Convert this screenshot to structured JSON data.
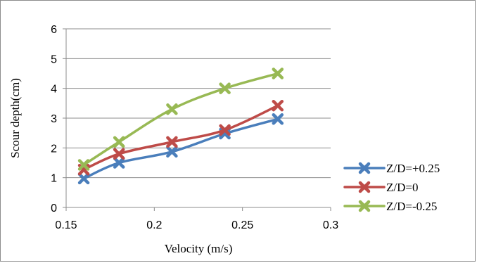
{
  "chart_data": {
    "type": "line",
    "xlabel": "Velocity (m/s)",
    "ylabel": "Scour depth(cm)",
    "xlim": [
      0.15,
      0.3
    ],
    "ylim": [
      0,
      6
    ],
    "xticks": [
      0.15,
      0.2,
      0.25,
      0.3
    ],
    "xtick_labels": [
      "0.15",
      "0.2",
      "0.25",
      "0.3"
    ],
    "yticks": [
      0,
      1,
      2,
      3,
      4,
      5,
      6
    ],
    "ytick_labels": [
      "0",
      "1",
      "2",
      "3",
      "4",
      "5",
      "6"
    ],
    "grid": "horizontal",
    "legend_position": "right",
    "series": [
      {
        "name": "Z/D=+0.25",
        "color": "#4a7ebb",
        "x": [
          0.16,
          0.18,
          0.21,
          0.24,
          0.27
        ],
        "y": [
          0.97,
          1.5,
          1.87,
          2.48,
          2.97
        ]
      },
      {
        "name": "Z/D=0",
        "color": "#be4b48",
        "x": [
          0.16,
          0.18,
          0.21,
          0.24,
          0.27
        ],
        "y": [
          1.27,
          1.8,
          2.2,
          2.6,
          3.42
        ]
      },
      {
        "name": "Z/D=-0.25",
        "color": "#98b954",
        "x": [
          0.16,
          0.18,
          0.21,
          0.24,
          0.27
        ],
        "y": [
          1.43,
          2.2,
          3.3,
          4.0,
          4.5
        ]
      }
    ]
  }
}
